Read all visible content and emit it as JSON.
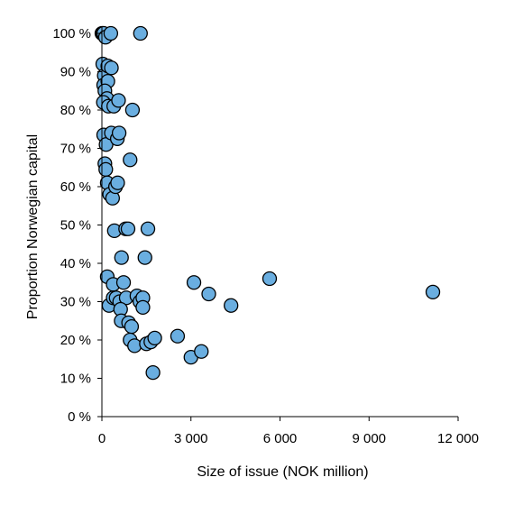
{
  "chart_data": {
    "type": "scatter",
    "xlabel": "Size of issue (NOK million)",
    "ylabel": "Proportion Norwegian capital",
    "xlim": [
      0,
      12000
    ],
    "ylim": [
      0,
      100
    ],
    "x_ticks": [
      {
        "value": 0,
        "label": "0"
      },
      {
        "value": 3000,
        "label": "3 000"
      },
      {
        "value": 6000,
        "label": "6 000"
      },
      {
        "value": 9000,
        "label": "9 000"
      },
      {
        "value": 12000,
        "label": "12 000"
      }
    ],
    "y_ticks": [
      {
        "value": 0,
        "label": "0 %"
      },
      {
        "value": 10,
        "label": "10 %"
      },
      {
        "value": 20,
        "label": "20 %"
      },
      {
        "value": 30,
        "label": "30 %"
      },
      {
        "value": 40,
        "label": "40 %"
      },
      {
        "value": 50,
        "label": "50 %"
      },
      {
        "value": 60,
        "label": "60 %"
      },
      {
        "value": 70,
        "label": "70 %"
      },
      {
        "value": 80,
        "label": "80 %"
      },
      {
        "value": 90,
        "label": "90 %"
      },
      {
        "value": 100,
        "label": "100 %"
      }
    ],
    "grid": false,
    "marker_color": "#6aaee0",
    "marker_edge": "#000000",
    "points": [
      {
        "x": 0,
        "y": 100
      },
      {
        "x": 30,
        "y": 100
      },
      {
        "x": 60,
        "y": 100
      },
      {
        "x": 120,
        "y": 99
      },
      {
        "x": 300,
        "y": 100
      },
      {
        "x": 1300,
        "y": 100
      },
      {
        "x": 30,
        "y": 92
      },
      {
        "x": 80,
        "y": 89
      },
      {
        "x": 200,
        "y": 91.5
      },
      {
        "x": 320,
        "y": 91
      },
      {
        "x": 60,
        "y": 86.5
      },
      {
        "x": 200,
        "y": 87.5
      },
      {
        "x": 100,
        "y": 85
      },
      {
        "x": 170,
        "y": 83
      },
      {
        "x": 50,
        "y": 82
      },
      {
        "x": 220,
        "y": 81
      },
      {
        "x": 400,
        "y": 81
      },
      {
        "x": 560,
        "y": 82.5
      },
      {
        "x": 1030,
        "y": 80
      },
      {
        "x": 60,
        "y": 73.5
      },
      {
        "x": 140,
        "y": 71
      },
      {
        "x": 320,
        "y": 74
      },
      {
        "x": 520,
        "y": 72.5
      },
      {
        "x": 580,
        "y": 74
      },
      {
        "x": 950,
        "y": 67
      },
      {
        "x": 100,
        "y": 66
      },
      {
        "x": 130,
        "y": 64.5
      },
      {
        "x": 180,
        "y": 61
      },
      {
        "x": 260,
        "y": 58
      },
      {
        "x": 360,
        "y": 57
      },
      {
        "x": 460,
        "y": 60
      },
      {
        "x": 530,
        "y": 61
      },
      {
        "x": 420,
        "y": 48.5
      },
      {
        "x": 800,
        "y": 49
      },
      {
        "x": 880,
        "y": 49
      },
      {
        "x": 1550,
        "y": 49
      },
      {
        "x": 660,
        "y": 41.5
      },
      {
        "x": 1450,
        "y": 41.5
      },
      {
        "x": 180,
        "y": 36.5
      },
      {
        "x": 380,
        "y": 34.5
      },
      {
        "x": 730,
        "y": 35
      },
      {
        "x": 240,
        "y": 29
      },
      {
        "x": 380,
        "y": 31
      },
      {
        "x": 480,
        "y": 31
      },
      {
        "x": 600,
        "y": 30
      },
      {
        "x": 820,
        "y": 31
      },
      {
        "x": 1180,
        "y": 31.5
      },
      {
        "x": 1280,
        "y": 30
      },
      {
        "x": 1380,
        "y": 31
      },
      {
        "x": 1380,
        "y": 28.5
      },
      {
        "x": 630,
        "y": 28
      },
      {
        "x": 650,
        "y": 25
      },
      {
        "x": 900,
        "y": 24.5
      },
      {
        "x": 1000,
        "y": 23.5
      },
      {
        "x": 950,
        "y": 20
      },
      {
        "x": 1100,
        "y": 18.5
      },
      {
        "x": 1500,
        "y": 19
      },
      {
        "x": 1650,
        "y": 19.5
      },
      {
        "x": 1780,
        "y": 20.5
      },
      {
        "x": 2550,
        "y": 21
      },
      {
        "x": 1720,
        "y": 11.5
      },
      {
        "x": 3000,
        "y": 15.5
      },
      {
        "x": 3350,
        "y": 17
      },
      {
        "x": 3100,
        "y": 35
      },
      {
        "x": 3600,
        "y": 32
      },
      {
        "x": 4350,
        "y": 29
      },
      {
        "x": 5650,
        "y": 36
      },
      {
        "x": 11150,
        "y": 32.5
      }
    ]
  }
}
